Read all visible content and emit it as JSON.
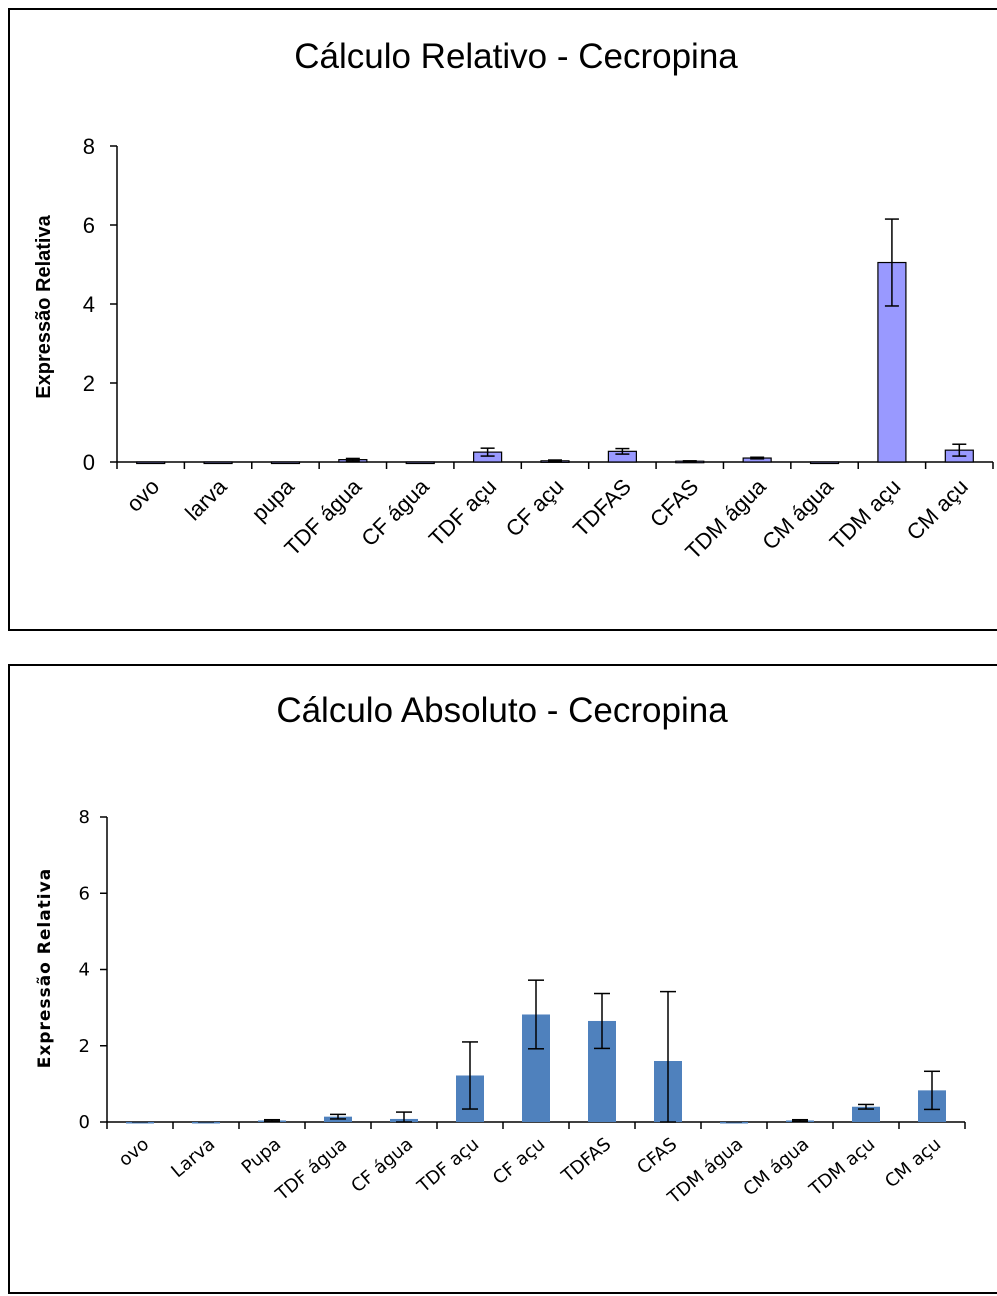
{
  "chart_data": [
    {
      "type": "bar",
      "title": "Cálculo Relativo - Cecropina",
      "xlabel": "",
      "ylabel": "Expressão Relativa",
      "ylim": [
        0,
        8
      ],
      "yticks": [
        0,
        2,
        4,
        6,
        8
      ],
      "categories": [
        "ovo",
        "larva",
        "pupa",
        "TDF água",
        "CF água",
        "TDF açu",
        "CF açu",
        "TDFAS",
        "CFAS",
        "TDM água",
        "CM água",
        "TDM açu",
        "CM açu"
      ],
      "values": [
        0.0,
        0.0,
        0.0,
        0.06,
        0.0,
        0.25,
        0.03,
        0.27,
        0.02,
        0.1,
        0.0,
        5.05,
        0.3
      ],
      "errors": [
        0.0,
        0.0,
        0.0,
        0.03,
        0.0,
        0.1,
        0.02,
        0.07,
        0.01,
        0.02,
        0.0,
        1.1,
        0.15
      ],
      "colors": {
        "bar_fill": "#9999ff",
        "bar_stroke": "#000000"
      },
      "grid": false,
      "legend": "none"
    },
    {
      "type": "bar",
      "title": "Cálculo Absoluto - Cecropina",
      "xlabel": "",
      "ylabel": "Expressão Relativa",
      "ylim": [
        0,
        8
      ],
      "yticks": [
        0,
        2,
        4,
        6,
        8
      ],
      "categories": [
        "ovo",
        "Larva",
        "Pupa",
        "TDF água",
        "CF água",
        "TDF açu",
        "CF açu",
        "TDFAS",
        "CFAS",
        "TDM água",
        "CM água",
        "TDM açu",
        "CM açu"
      ],
      "values": [
        0.0,
        0.0,
        0.04,
        0.14,
        0.08,
        1.22,
        2.82,
        2.65,
        1.6,
        0.0,
        0.04,
        0.4,
        0.83
      ],
      "errors": [
        0.0,
        0.0,
        0.02,
        0.06,
        0.18,
        0.88,
        0.9,
        0.72,
        1.82,
        0.0,
        0.02,
        0.06,
        0.5
      ],
      "colors": {
        "bar_fill": "#4f81bd",
        "bar_stroke": "none"
      },
      "grid": false,
      "legend": "none"
    }
  ]
}
